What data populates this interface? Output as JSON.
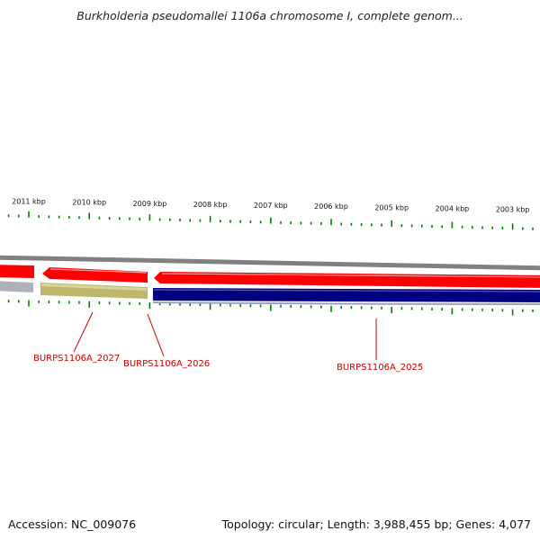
{
  "title": "Burkholderia pseudomallei 1106a chromosome I, complete genom...",
  "footer": {
    "accession": "Accession: NC_009076",
    "topology": "Topology: circular; Length: 3,988,455 bp; Genes: 4,077"
  },
  "ticks": [
    {
      "label": "2011 kbp"
    },
    {
      "label": "2010 kbp"
    },
    {
      "label": "2009 kbp"
    },
    {
      "label": "2008 kbp"
    },
    {
      "label": "2007 kbp"
    },
    {
      "label": "2006 kbp"
    },
    {
      "label": "2005 kbp"
    },
    {
      "label": "2004 kbp"
    },
    {
      "label": "2003 kbp"
    }
  ],
  "genes": [
    {
      "label": "BURPS1106A_2027"
    },
    {
      "label": "BURPS1106A_2026"
    },
    {
      "label": "BURPS1106A_2025"
    }
  ],
  "colors": {
    "forward": "#ff0000",
    "reverse_cds": "#000080",
    "gc_khaki": "#bdb76b",
    "backbone": "#808080",
    "tick": "#008000",
    "label": "#c00000"
  }
}
